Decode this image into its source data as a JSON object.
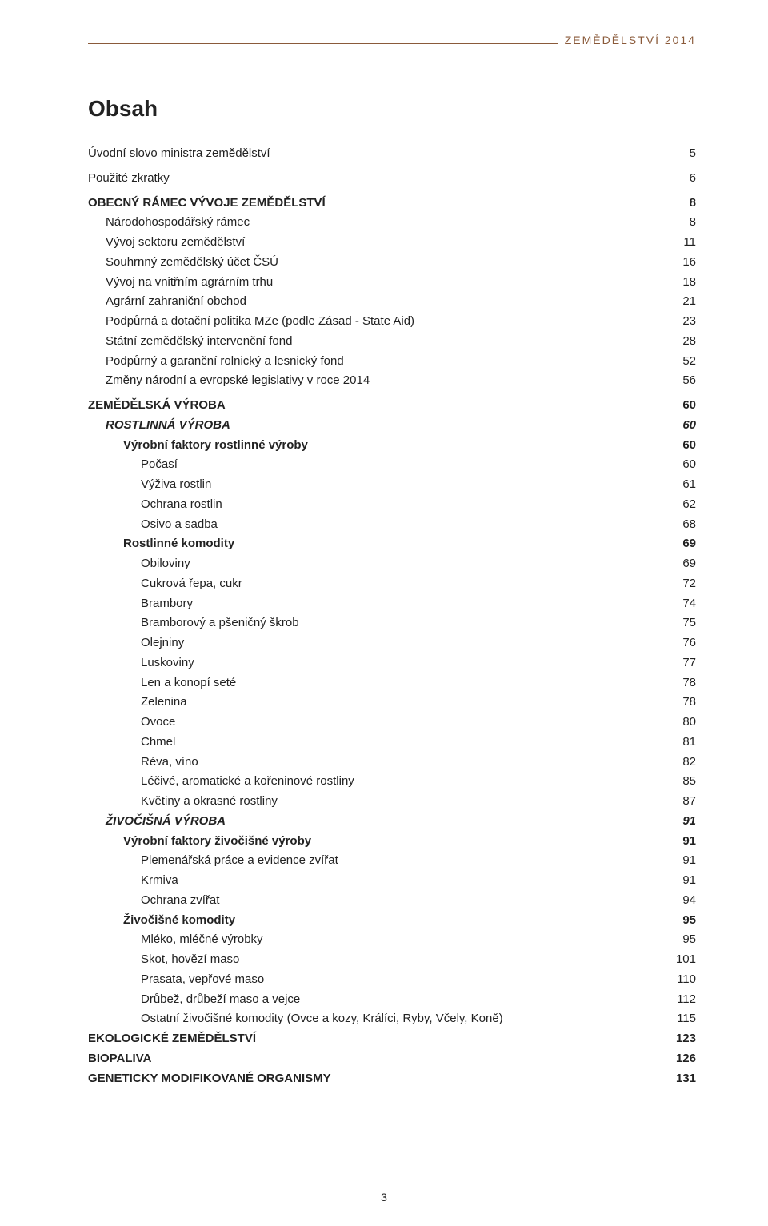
{
  "header": "ZEMĚDĚLSTVÍ 2014",
  "header_color": "#8a5a3a",
  "heading": "Obsah",
  "page_number": "3",
  "toc": [
    {
      "label": "Úvodní slovo ministra zemědělství",
      "page": "5",
      "indent": 0,
      "bold": false,
      "italic": false,
      "space_after": true
    },
    {
      "label": "Použité zkratky",
      "page": "6",
      "indent": 0,
      "bold": false,
      "italic": false,
      "space_after": true
    },
    {
      "label": "OBECNÝ RÁMEC VÝVOJE ZEMĚDĚLSTVÍ",
      "page": "8",
      "indent": 0,
      "bold": true
    },
    {
      "label": "Národohospodářský rámec",
      "page": "8",
      "indent": 1
    },
    {
      "label": "Vývoj sektoru zemědělství",
      "page": "11",
      "indent": 1
    },
    {
      "label": "Souhrnný zemědělský účet ČSÚ",
      "page": "16",
      "indent": 1
    },
    {
      "label": "Vývoj na vnitřním agrárním trhu",
      "page": "18",
      "indent": 1
    },
    {
      "label": "Agrární zahraniční obchod",
      "page": "21",
      "indent": 1
    },
    {
      "label": "Podpůrná a dotační politika MZe (podle Zásad - State Aid)",
      "page": "23",
      "indent": 1
    },
    {
      "label": "Státní zemědělský intervenční fond",
      "page": "28",
      "indent": 1
    },
    {
      "label": "Podpůrný a garanční rolnický a lesnický fond",
      "page": "52",
      "indent": 1
    },
    {
      "label": "Změny národní a evropské legislativy v roce 2014",
      "page": "56",
      "indent": 1,
      "space_after": true
    },
    {
      "label": "ZEMĚDĚLSKÁ VÝROBA",
      "page": "60",
      "indent": 0,
      "bold": true
    },
    {
      "label": "ROSTLINNÁ VÝROBA",
      "page": "60",
      "indent": 1,
      "bold": true,
      "italic": true
    },
    {
      "label": "Výrobní faktory rostlinné výroby",
      "page": "60",
      "indent": 2,
      "bold": true
    },
    {
      "label": "Počasí",
      "page": "60",
      "indent": 3
    },
    {
      "label": "Výživa rostlin",
      "page": "61",
      "indent": 3
    },
    {
      "label": "Ochrana rostlin",
      "page": "62",
      "indent": 3
    },
    {
      "label": "Osivo a sadba",
      "page": "68",
      "indent": 3
    },
    {
      "label": "Rostlinné komodity",
      "page": "69",
      "indent": 2,
      "bold": true
    },
    {
      "label": "Obiloviny",
      "page": "69",
      "indent": 3
    },
    {
      "label": "Cukrová řepa, cukr",
      "page": "72",
      "indent": 3
    },
    {
      "label": "Brambory",
      "page": "74",
      "indent": 3
    },
    {
      "label": "Bramborový a pšeničný škrob",
      "page": "75",
      "indent": 3
    },
    {
      "label": "Olejniny",
      "page": "76",
      "indent": 3
    },
    {
      "label": "Luskoviny",
      "page": "77",
      "indent": 3
    },
    {
      "label": "Len a konopí seté",
      "page": "78",
      "indent": 3
    },
    {
      "label": "Zelenina",
      "page": "78",
      "indent": 3
    },
    {
      "label": "Ovoce",
      "page": "80",
      "indent": 3
    },
    {
      "label": "Chmel",
      "page": "81",
      "indent": 3
    },
    {
      "label": "Réva, víno",
      "page": "82",
      "indent": 3
    },
    {
      "label": "Léčivé, aromatické a kořeninové rostliny",
      "page": "85",
      "indent": 3
    },
    {
      "label": "Květiny a okrasné rostliny",
      "page": "87",
      "indent": 3
    },
    {
      "label": "ŽIVOČIŠNÁ VÝROBA",
      "page": "91",
      "indent": 1,
      "bold": true,
      "italic": true
    },
    {
      "label": "Výrobní faktory živočišné výroby",
      "page": "91",
      "indent": 2,
      "bold": true
    },
    {
      "label": "Plemenářská práce a evidence zvířat",
      "page": "91",
      "indent": 3
    },
    {
      "label": "Krmiva",
      "page": "91",
      "indent": 3
    },
    {
      "label": "Ochrana zvířat",
      "page": "94",
      "indent": 3
    },
    {
      "label": "Živočišné komodity",
      "page": "95",
      "indent": 2,
      "bold": true
    },
    {
      "label": "Mléko, mléčné výrobky",
      "page": "95",
      "indent": 3
    },
    {
      "label": "Skot, hovězí maso",
      "page": "101",
      "indent": 3
    },
    {
      "label": "Prasata, vepřové maso",
      "page": "110",
      "indent": 3
    },
    {
      "label": "Drůbež, drůbeží maso a vejce",
      "page": "112",
      "indent": 3
    },
    {
      "label": "Ostatní živočišné komodity (Ovce a kozy, Králíci, Ryby, Včely, Koně)",
      "page": "115",
      "indent": 3
    },
    {
      "label": "EKOLOGICKÉ ZEMĚDĚLSTVÍ",
      "page": "123",
      "indent": 0,
      "bold": true
    },
    {
      "label": "BIOPALIVA",
      "page": "126",
      "indent": 0,
      "bold": true
    },
    {
      "label": "GENETICKY MODIFIKOVANÉ ORGANISMY",
      "page": "131",
      "indent": 0,
      "bold": true
    }
  ]
}
